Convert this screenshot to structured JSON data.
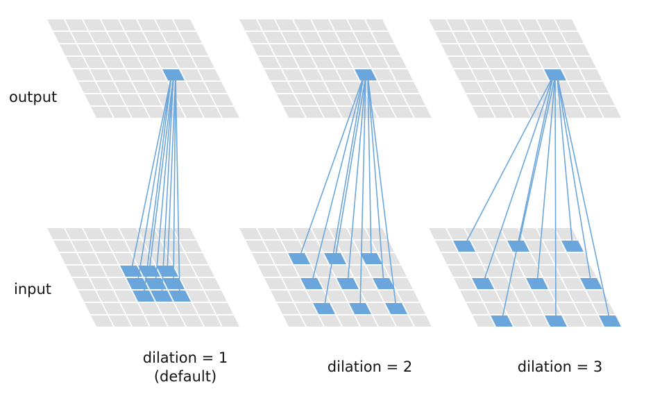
{
  "labels": {
    "output": "output",
    "input": "input"
  },
  "panels": [
    {
      "caption": "dilation = 1",
      "caption_sub": "(default)",
      "dilation": 1
    },
    {
      "caption": "dilation = 2",
      "caption_sub": "",
      "dilation": 2
    },
    {
      "caption": "dilation = 3",
      "caption_sub": "",
      "dilation": 3
    }
  ],
  "grid_size": 8,
  "kernel_size": 3,
  "colors": {
    "cell": "#e2e2e2",
    "highlight": "#6aa6dc",
    "line": "#6aa6dc"
  }
}
